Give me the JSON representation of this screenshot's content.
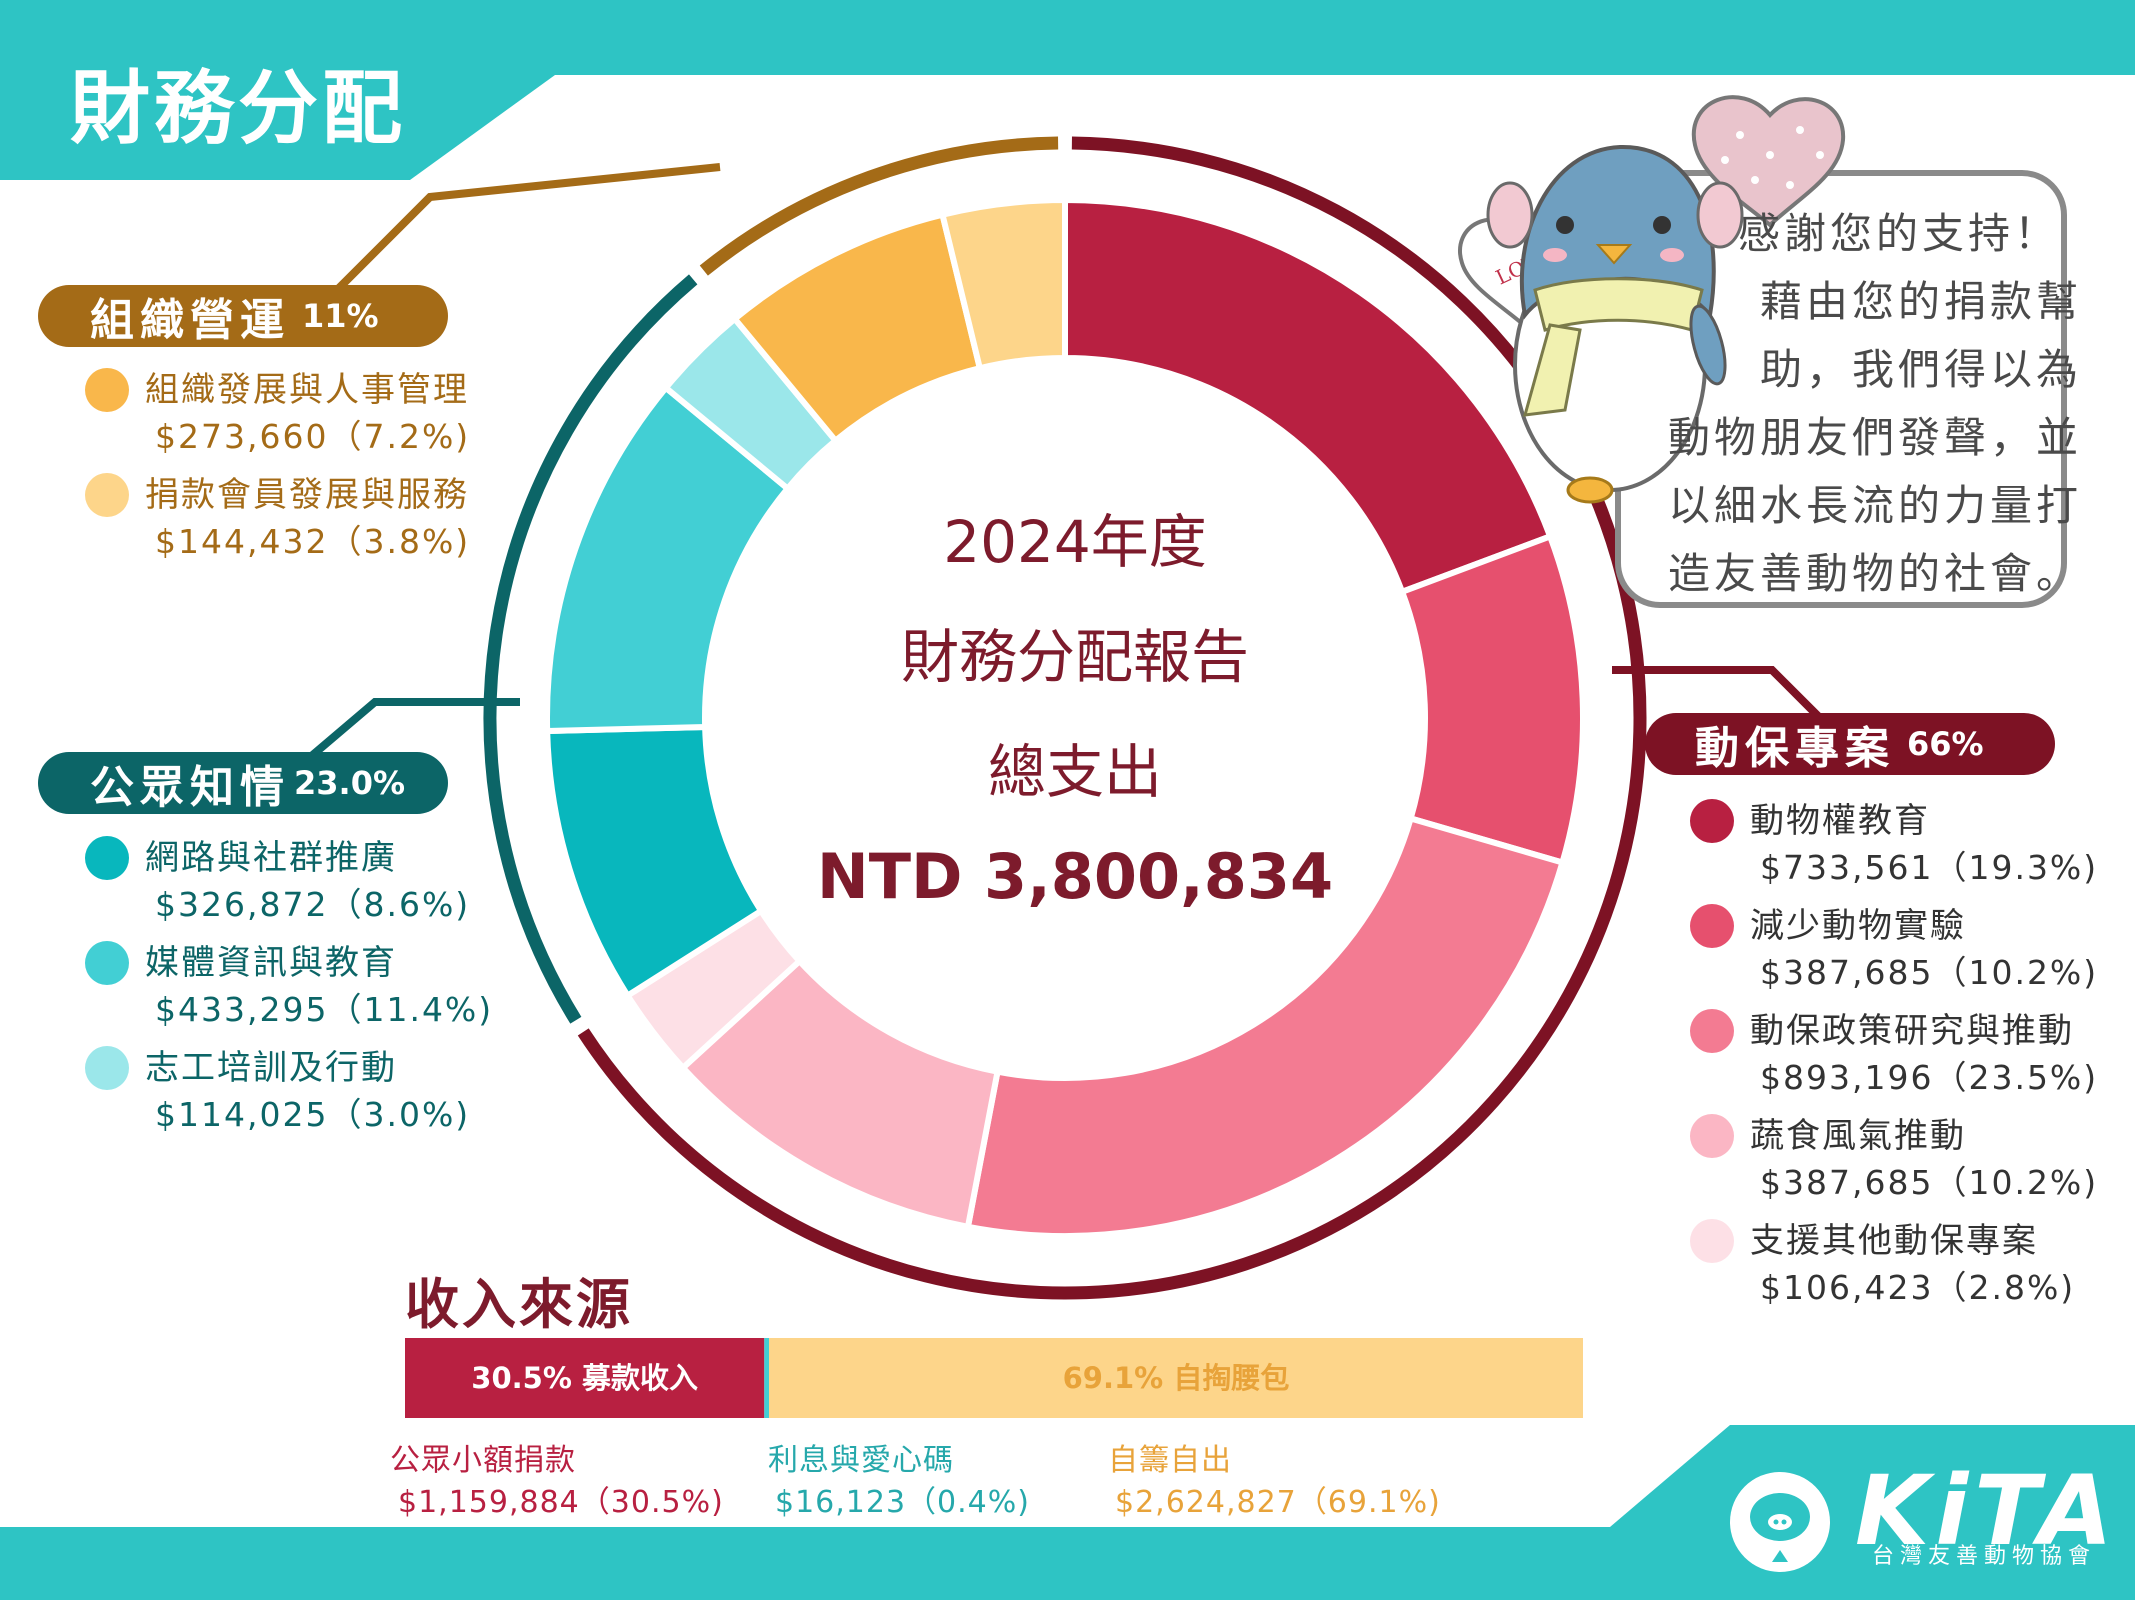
{
  "header": {
    "title": "財務分配"
  },
  "colors": {
    "teal": "#2ec4c4",
    "brown": "#a46b17",
    "dark_teal": "#0c6567",
    "maroon": "#7d1224",
    "center_text": "#7d1b2c"
  },
  "center": {
    "line1": "2024年度",
    "line2": "財務分配報告",
    "line3": "總支出",
    "total": "NTD 3,800,834"
  },
  "groups": [
    {
      "name": "組織營運",
      "pct": "11%",
      "color": "#a46b17",
      "text_color": "#a46b17",
      "items": [
        {
          "label": "組織發展與人事管理",
          "value": "$273,660（7.2%)",
          "color": "#f9b74b"
        },
        {
          "label": "捐款會員發展與服務",
          "value": "$144,432（3.8%)",
          "color": "#fdd58a"
        }
      ]
    },
    {
      "name": "公眾知情",
      "pct": "23.0%",
      "color": "#0c6567",
      "text_color": "#0c6567",
      "items": [
        {
          "label": "網路與社群推廣",
          "value": "$326,872（8.6%)",
          "color": "#08b7bd"
        },
        {
          "label": "媒體資訊與教育",
          "value": "$433,295（11.4%)",
          "color": "#42cfd4"
        },
        {
          "label": "志工培訓及行動",
          "value": "$114,025（3.0%)",
          "color": "#9be7ea"
        }
      ]
    },
    {
      "name": "動保專案",
      "pct": "66%",
      "color": "#7d1224",
      "text_color": "#333333",
      "items": [
        {
          "label": "動物權教育",
          "value": "$733,561（19.3%)",
          "color": "#b82041"
        },
        {
          "label": "減少動物實驗",
          "value": "$387,685（10.2%)",
          "color": "#e6506e"
        },
        {
          "label": "動保政策研究與推動",
          "value": "$893,196（23.5%)",
          "color": "#f37b92"
        },
        {
          "label": "蔬食風氣推動",
          "value": "$387,685（10.2%)",
          "color": "#fbb6c4"
        },
        {
          "label": "支援其他動保專案",
          "value": "$106,423（2.8%)",
          "color": "#fde0e6"
        }
      ]
    }
  ],
  "chart_data": {
    "type": "pie",
    "donut": true,
    "unit": "NTD",
    "total": 3800834,
    "slices": [
      {
        "label": "動物權教育",
        "value": 733561,
        "percent": 19.3,
        "color": "#b82041",
        "group": "動保專案"
      },
      {
        "label": "減少動物實驗",
        "value": 387685,
        "percent": 10.2,
        "color": "#e6506e",
        "group": "動保專案"
      },
      {
        "label": "動保政策研究與推動",
        "value": 893196,
        "percent": 23.5,
        "color": "#f37b92",
        "group": "動保專案"
      },
      {
        "label": "蔬食風氣推動",
        "value": 387685,
        "percent": 10.2,
        "color": "#fbb6c4",
        "group": "動保專案"
      },
      {
        "label": "支援其他動保專案",
        "value": 106423,
        "percent": 2.8,
        "color": "#fde0e6",
        "group": "動保專案"
      },
      {
        "label": "網路與社群推廣",
        "value": 326872,
        "percent": 8.6,
        "color": "#08b7bd",
        "group": "公眾知情"
      },
      {
        "label": "媒體資訊與教育",
        "value": 433295,
        "percent": 11.4,
        "color": "#42cfd4",
        "group": "公眾知情"
      },
      {
        "label": "志工培訓及行動",
        "value": 114025,
        "percent": 3.0,
        "color": "#9be7ea",
        "group": "公眾知情"
      },
      {
        "label": "組織發展與人事管理",
        "value": 273660,
        "percent": 7.2,
        "color": "#f9b74b",
        "group": "組織營運"
      },
      {
        "label": "捐款會員發展與服務",
        "value": 144432,
        "percent": 3.8,
        "color": "#fdd58a",
        "group": "組織營運"
      }
    ],
    "income": {
      "title": "收入來源",
      "segments": [
        {
          "bar_label": "30.5% 募款收入",
          "percent": 30.5,
          "color": "#b82041",
          "text_color": "#ffffff"
        },
        {
          "bar_label": "",
          "percent": 0.4,
          "color": "#42cfd4",
          "text_color": "#ffffff"
        },
        {
          "bar_label": "69.1% 自掏腰包",
          "percent": 69.1,
          "color": "#fdd58a",
          "text_color": "#e8a33a"
        }
      ],
      "items": [
        {
          "label": "公眾小額捐款",
          "value": "$1,159,884（30.5%)",
          "amount": 1159884,
          "color": "#b82041"
        },
        {
          "label": "利息與愛心碼",
          "value": "$16,123（0.4%)",
          "amount": 16123,
          "color": "#26a8ab"
        },
        {
          "label": "自籌自出",
          "value": "$2,624,827（69.1%)",
          "amount": 2624827,
          "color": "#e8a33a"
        }
      ]
    }
  },
  "thanks": {
    "lines": [
      "感謝您的支持！",
      "藉由您的捐款幫",
      "助，我們得以為",
      "動物朋友們發聲，並",
      "以細水長流的力量打",
      "造友善動物的社會。"
    ],
    "love": "LOVE"
  },
  "logo": {
    "name": "KiTA",
    "subtitle": "台灣友善動物協會"
  }
}
